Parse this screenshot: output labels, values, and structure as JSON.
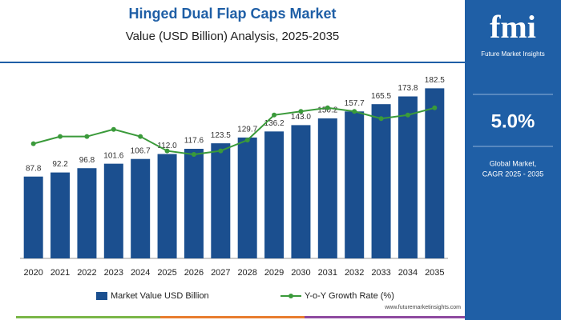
{
  "chart_data": {
    "type": "bar",
    "title": "Hinged Dual Flap Caps Market",
    "subtitle": "Value (USD Billion) Analysis, 2025-2035",
    "categories": [
      "2020",
      "2021",
      "2022",
      "2023",
      "2024",
      "2025",
      "2026",
      "2027",
      "2028",
      "2029",
      "2030",
      "2031",
      "2032",
      "2033",
      "2034",
      "2035"
    ],
    "series": [
      {
        "name": "Market Value USD Billion",
        "color": "#1b4f8f",
        "values": [
          87.8,
          92.2,
          96.8,
          101.6,
          106.7,
          112.0,
          117.6,
          123.5,
          129.7,
          136.2,
          143.0,
          150.2,
          157.7,
          165.5,
          173.8,
          182.5
        ],
        "value_labels": [
          "87.8",
          "92.2",
          "96.8",
          "101.6",
          "106.7",
          "112.0",
          "117.6",
          "123.5",
          "129.7",
          "136.2",
          "143.0",
          "150.2",
          "157.7",
          "165.5",
          "173.8",
          "182.5"
        ]
      },
      {
        "name": "Y-o-Y Growth Rate (%)",
        "type": "line",
        "color": "#3a9a3a",
        "axis": "y2",
        "values": [
          4.8,
          4.9,
          4.9,
          5.0,
          4.9,
          4.7,
          4.65,
          4.7,
          4.85,
          5.2,
          5.25,
          5.3,
          5.25,
          5.15,
          5.2,
          5.3
        ]
      }
    ],
    "ylim": [
      0,
      200
    ],
    "y2lim": [
      3.2,
      5.8
    ],
    "legend": "bottom"
  },
  "sidebar": {
    "logo": "fmi",
    "company": "Future Market Insights",
    "cagr": "5.0%",
    "cagr_label_1": "Global Market,",
    "cagr_label_2": "CAGR 2025 - 2035"
  },
  "footer": {
    "website": "www.futuremarketinsights.com"
  }
}
